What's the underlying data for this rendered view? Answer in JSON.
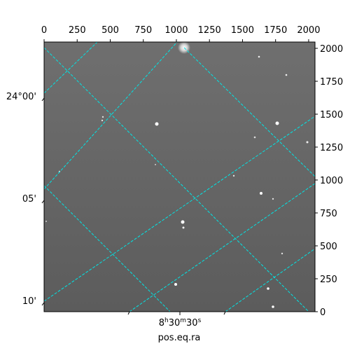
{
  "chart_data": {
    "type": "image",
    "xlabel": "pos.eq.ra",
    "xlim": [
      0,
      2048
    ],
    "xticks": [
      0,
      250,
      500,
      750,
      1000,
      1250,
      1500,
      1750,
      2000
    ],
    "ylim": [
      0,
      2048
    ],
    "yticks": [
      0,
      250,
      500,
      750,
      1000,
      1250,
      1500,
      1750,
      2000
    ],
    "dec_ticks": [
      "24°00'",
      "05'",
      "10'"
    ],
    "ra_tick": [
      "8",
      "h",
      "30",
      "m",
      "30",
      "s"
    ]
  }
}
